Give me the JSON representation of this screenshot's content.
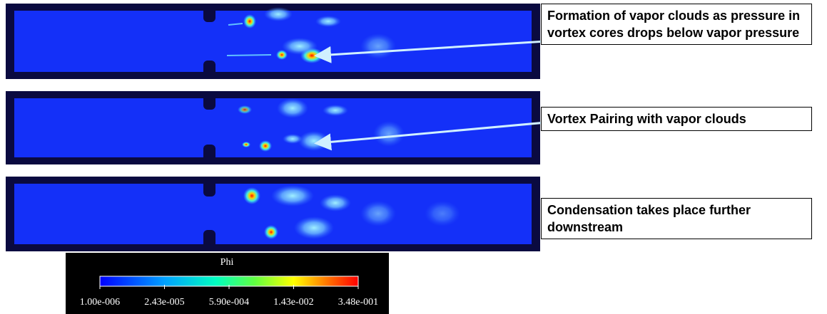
{
  "annotations": [
    "Formation of vapor clouds as pressure in vortex cores drops below vapor pressure",
    "Vortex Pairing with vapor clouds",
    "Condensation takes place further downstream"
  ],
  "colorbar": {
    "title": "Phi",
    "tick_labels": [
      "1.00e-006",
      "2.43e-005",
      "5.90e-004",
      "1.43e-002",
      "3.48e-001"
    ]
  }
}
